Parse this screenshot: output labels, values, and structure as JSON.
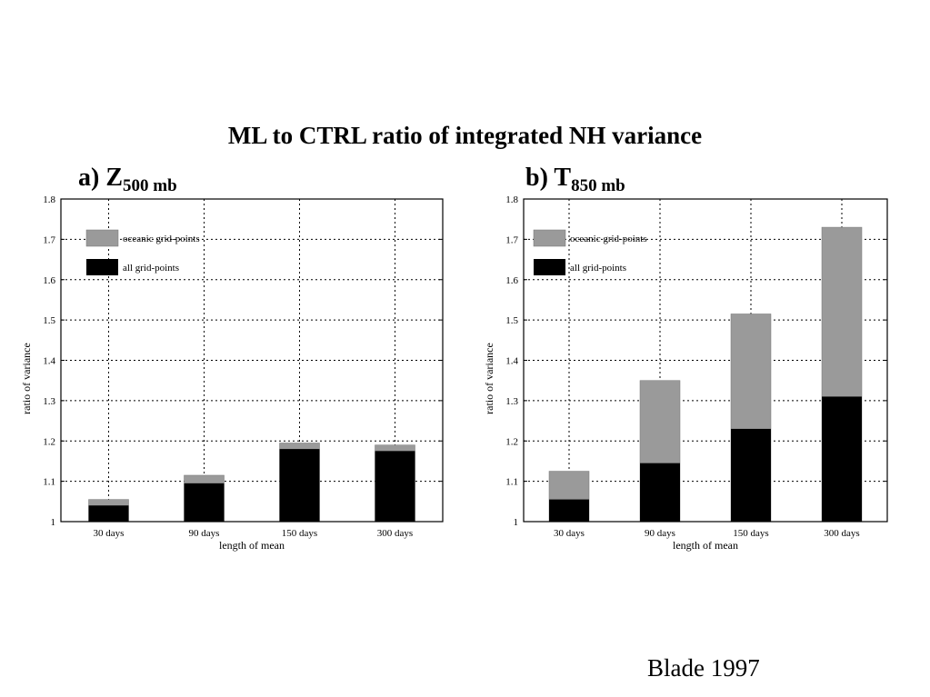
{
  "title": "ML to CTRL ratio of integrated NH variance",
  "credit": "Blade 1997",
  "colors": {
    "oceanic": "#9a9a9a",
    "all": "#000000",
    "grid": "#000000"
  },
  "chart_data": [
    {
      "type": "bar",
      "panel_label": "a) Z",
      "panel_sub": "500 mb",
      "categories": [
        "30 days",
        "90 days",
        "150 days",
        "300 days"
      ],
      "series": [
        {
          "name": "oceanic grid-points",
          "values": [
            1.055,
            1.115,
            1.195,
            1.19
          ]
        },
        {
          "name": "all grid-points",
          "values": [
            1.04,
            1.095,
            1.18,
            1.175
          ]
        }
      ],
      "xlabel": "length of mean",
      "ylabel": "ratio of variance",
      "ylim": [
        1,
        1.8
      ],
      "yticks": [
        "1",
        "1.1",
        "1.2",
        "1.3",
        "1.4",
        "1.5",
        "1.6",
        "1.7",
        "1.8"
      ],
      "grid": true,
      "legend_position": "top-left"
    },
    {
      "type": "bar",
      "panel_label": "b) T",
      "panel_sub": "850 mb",
      "categories": [
        "30 days",
        "90 days",
        "150 days",
        "300 days"
      ],
      "series": [
        {
          "name": "oceanic grid-points",
          "values": [
            1.125,
            1.35,
            1.515,
            1.73
          ]
        },
        {
          "name": "all grid-points",
          "values": [
            1.055,
            1.145,
            1.23,
            1.31
          ]
        }
      ],
      "xlabel": "length of mean",
      "ylabel": "ratio of variance",
      "ylim": [
        1,
        1.8
      ],
      "yticks": [
        "1",
        "1.1",
        "1.2",
        "1.3",
        "1.4",
        "1.5",
        "1.6",
        "1.7",
        "1.8"
      ],
      "grid": true,
      "legend_position": "top-left"
    }
  ]
}
